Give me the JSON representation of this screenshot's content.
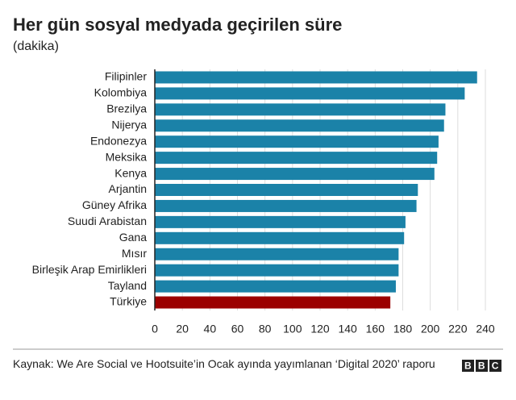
{
  "chart_data": {
    "type": "bar",
    "orientation": "horizontal",
    "title": "Her gün sosyal medyada geçirilen süre",
    "subtitle": "(dakika)",
    "categories": [
      "Filipinler",
      "Kolombiya",
      "Brezilya",
      "Nijerya",
      "Endonezya",
      "Meksika",
      "Kenya",
      "Arjantin",
      "Güney Afrika",
      "Suudi Arabistan",
      "Gana",
      "Mısır",
      "Birleşik Arap Emirlikleri",
      "Tayland",
      "Türkiye"
    ],
    "values": [
      234,
      225,
      211,
      210,
      206,
      205,
      203,
      191,
      190,
      182,
      181,
      177,
      177,
      175,
      171
    ],
    "colors": [
      "#1b82a8",
      "#1b82a8",
      "#1b82a8",
      "#1b82a8",
      "#1b82a8",
      "#1b82a8",
      "#1b82a8",
      "#1b82a8",
      "#1b82a8",
      "#1b82a8",
      "#1b82a8",
      "#1b82a8",
      "#1b82a8",
      "#1b82a8",
      "#9b0000"
    ],
    "xlim": [
      0,
      240
    ],
    "xticks": [
      0,
      20,
      40,
      60,
      80,
      100,
      120,
      140,
      160,
      180,
      200,
      220,
      240
    ],
    "grid": true,
    "source": "Kaynak: We Are Social ve Hootsuite’in Ocak ayında yayımlanan ‘Digital 2020’ raporu",
    "logo": "BBC"
  }
}
